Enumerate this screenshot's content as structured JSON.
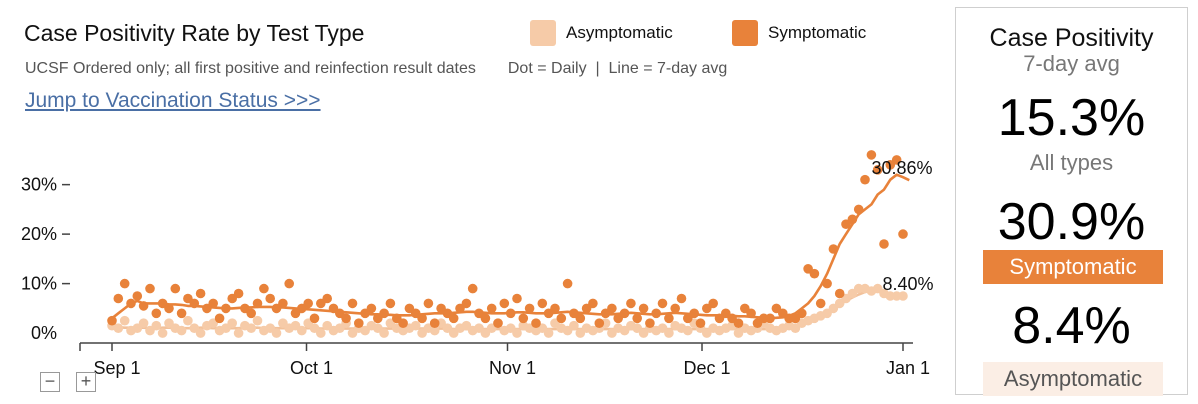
{
  "header": {
    "title": "Case Positivity Rate by Test Type",
    "subtitle": "UCSF Ordered only; all first positive and reinfection result dates",
    "note": "Dot = Daily  |  Line = 7-day avg",
    "link": "Jump to Vaccination Status >>>"
  },
  "legend": [
    {
      "label": "Asymptomatic",
      "color": "#f6cba8"
    },
    {
      "label": "Symptomatic",
      "color": "#e8823a"
    }
  ],
  "panel": {
    "title": "Case Positivity",
    "subtitle": "7-day avg",
    "all_value": "15.3%",
    "all_label": "All types",
    "sym_value": "30.9%",
    "sym_label": "Symptomatic",
    "asym_value": "8.4%",
    "asym_label": "Asymptomatic"
  },
  "zoom": {
    "minus": "−",
    "plus": "+"
  },
  "colors": {
    "symptomatic": "#e8823a",
    "asymptomatic": "#f6cba8",
    "asymptomatic_line": "#f2c19a",
    "axis": "#444444"
  },
  "chart_data": {
    "type": "scatter",
    "x_axis": {
      "start": "2021-09-01",
      "end": "2021-12-31",
      "ticks": [
        "Sep 1",
        "Oct 1",
        "Nov 1",
        "Dec 1",
        "Jan 1"
      ],
      "tick_days": [
        0,
        30,
        61,
        91,
        122
      ]
    },
    "y_axis": {
      "ticks": [
        "30%",
        "20%",
        "10%",
        "0%"
      ],
      "tick_values": [
        30,
        20,
        10,
        0
      ],
      "ylim": [
        -2,
        37
      ]
    },
    "end_labels": [
      {
        "series": "Symptomatic",
        "text": "30.86%"
      },
      {
        "series": "Asymptomatic",
        "text": "8.40%"
      }
    ],
    "series": [
      {
        "name": "Symptomatic",
        "daily": [
          2.5,
          7,
          10,
          6,
          7.5,
          5.5,
          9,
          4,
          6,
          5,
          9,
          4,
          7,
          6,
          8,
          5,
          6,
          3,
          5,
          7,
          8,
          5,
          4,
          6,
          9,
          7,
          5,
          6,
          10,
          4,
          5,
          6,
          3,
          6,
          7,
          5,
          4,
          3,
          6,
          2,
          4,
          5,
          3,
          4,
          6,
          3,
          2,
          5,
          4,
          3,
          6,
          2,
          5,
          4,
          3,
          5,
          6,
          9,
          4,
          3,
          5,
          2,
          6,
          4,
          7,
          3,
          5,
          2,
          6,
          4,
          5,
          3,
          10,
          4,
          3,
          5,
          6,
          2,
          4,
          5,
          3,
          4,
          6,
          3,
          5,
          2,
          4,
          6,
          3,
          5,
          7,
          3,
          4,
          2,
          5,
          6,
          3,
          4,
          3,
          2,
          5,
          4,
          2,
          3,
          3,
          5,
          4,
          3,
          3,
          4,
          13,
          12,
          6,
          10,
          17,
          8,
          22,
          23,
          25,
          31,
          36,
          33,
          18,
          34,
          35,
          20
        ],
        "avg7": [
          3,
          4,
          5,
          6,
          6.5,
          6,
          6,
          6,
          6,
          5.8,
          5.8,
          5.7,
          5.5,
          5.5,
          5.4,
          5.3,
          5.2,
          5.1,
          5,
          5,
          5.1,
          5.2,
          5.2,
          5.3,
          5.3,
          5.3,
          5.2,
          5.2,
          5.1,
          5,
          4.9,
          4.8,
          4.7,
          4.6,
          4.5,
          4.4,
          4.3,
          4.2,
          4.1,
          4,
          3.9,
          3.8,
          3.8,
          3.7,
          3.7,
          3.6,
          3.6,
          3.6,
          3.7,
          3.8,
          3.9,
          4,
          4,
          4,
          4.1,
          4.2,
          4.3,
          4.3,
          4.2,
          4.1,
          4,
          4,
          4,
          4.1,
          4.2,
          4.2,
          4.1,
          4,
          4,
          4,
          4.1,
          4.2,
          4.3,
          4.2,
          4.1,
          4,
          3.9,
          3.8,
          3.8,
          3.8,
          3.9,
          4,
          4.1,
          4,
          3.9,
          3.8,
          3.8,
          3.9,
          4,
          4.1,
          4,
          3.9,
          3.8,
          3.7,
          3.6,
          3.6,
          3.6,
          3.5,
          3.5,
          3.4,
          3.4,
          3.3,
          3.2,
          3.1,
          3,
          3.1,
          3.2,
          3.5,
          4,
          5,
          6,
          7.5,
          9.5,
          12,
          15,
          18,
          20,
          22,
          24,
          25,
          26,
          28,
          29,
          31,
          32,
          31.5,
          30.9
        ]
      },
      {
        "name": "Asymptomatic",
        "daily": [
          1.5,
          1,
          2.5,
          0.5,
          1,
          2,
          0.5,
          1.5,
          0,
          2,
          1,
          0.5,
          2.5,
          1,
          0,
          1.5,
          2,
          0.5,
          1,
          2,
          0,
          1.5,
          1,
          2.5,
          0.5,
          1,
          0,
          2,
          1,
          1.5,
          0.5,
          2,
          1,
          0,
          1.5,
          0.5,
          1,
          2,
          0,
          1,
          0.5,
          1.5,
          1,
          0,
          2,
          1,
          0.5,
          1,
          1.5,
          0,
          1,
          0.5,
          2,
          1,
          0,
          1,
          1.5,
          0.5,
          1,
          0,
          1,
          2,
          0.5,
          1,
          0,
          1.5,
          1,
          0.5,
          1,
          0,
          2,
          1,
          0.5,
          1.5,
          0,
          1,
          0.5,
          1,
          2,
          0,
          1,
          0.5,
          1.5,
          1,
          0,
          1,
          0.5,
          1,
          0,
          1.5,
          1,
          0.5,
          2,
          1,
          0,
          1,
          0.5,
          1,
          1.5,
          0,
          1,
          0.5,
          1,
          2,
          1,
          0.5,
          1,
          1.5,
          1,
          2,
          2.5,
          3,
          3.5,
          4,
          5,
          6,
          7,
          8,
          9,
          9,
          8.5,
          9,
          8,
          7.5,
          7.5,
          7.5
        ],
        "avg7": [
          1.2,
          1.2,
          1.1,
          1.1,
          1.1,
          1.1,
          1,
          1,
          1.1,
          1.1,
          1.1,
          1,
          1,
          1,
          1.1,
          1.1,
          1,
          1,
          1,
          1,
          1,
          1.1,
          1.1,
          1.1,
          1,
          1,
          1,
          1,
          1,
          1,
          1,
          1,
          1,
          0.9,
          0.9,
          0.9,
          0.9,
          0.9,
          0.9,
          0.9,
          0.9,
          0.9,
          0.9,
          0.9,
          0.9,
          0.9,
          0.9,
          0.9,
          0.9,
          0.9,
          0.9,
          0.9,
          0.9,
          0.9,
          0.8,
          0.8,
          0.8,
          0.8,
          0.8,
          0.8,
          0.8,
          0.8,
          0.8,
          0.8,
          0.8,
          0.8,
          0.8,
          0.8,
          0.8,
          0.8,
          0.8,
          0.8,
          0.8,
          0.8,
          0.8,
          0.8,
          0.8,
          0.8,
          0.8,
          0.8,
          0.8,
          0.8,
          0.8,
          0.8,
          0.8,
          0.8,
          0.8,
          0.8,
          0.8,
          0.8,
          0.8,
          0.8,
          0.8,
          0.8,
          0.8,
          0.8,
          0.8,
          0.8,
          0.8,
          0.8,
          0.8,
          0.8,
          0.8,
          0.8,
          0.8,
          0.9,
          1,
          1.3,
          1.6,
          2,
          2.5,
          3,
          3.6,
          4.3,
          5,
          5.8,
          6.5,
          7.2,
          7.8,
          8.3,
          8.6,
          8.4
        ]
      }
    ]
  }
}
